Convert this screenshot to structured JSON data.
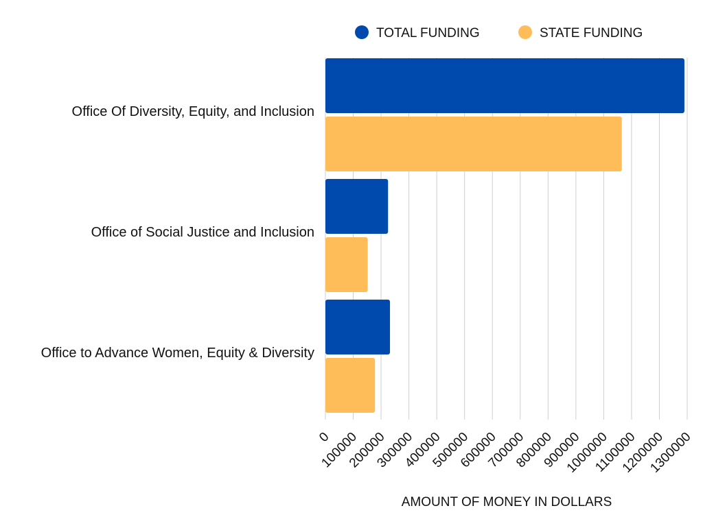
{
  "chart_data": {
    "type": "bar",
    "orientation": "horizontal",
    "categories": [
      "Office Of Diversity, Equity, and Inclusion",
      "Office of Social Justice and Inclusion",
      "Office to Advance Women, Equity & Diversity"
    ],
    "series": [
      {
        "name": "TOTAL FUNDING",
        "color": "#004AAD",
        "values": [
          1290000,
          225000,
          232000
        ]
      },
      {
        "name": "STATE FUNDING",
        "color": "#FFBD59",
        "values": [
          1065000,
          152000,
          178000
        ]
      }
    ],
    "xlabel": "AMOUNT OF MONEY IN DOLLARS",
    "ylabel": "",
    "title": "",
    "xlim": [
      0,
      1300000
    ],
    "xticks": [
      0,
      100000,
      200000,
      300000,
      400000,
      500000,
      600000,
      700000,
      800000,
      900000,
      1000000,
      1100000,
      1200000,
      1300000
    ],
    "xtick_labels": [
      "0",
      "100000",
      "200000",
      "300000",
      "400000",
      "500000",
      "600000",
      "700000",
      "800000",
      "900000",
      "1000000",
      "1100000",
      "1200000",
      "1300000"
    ],
    "grid": true,
    "legend_position": "top"
  }
}
